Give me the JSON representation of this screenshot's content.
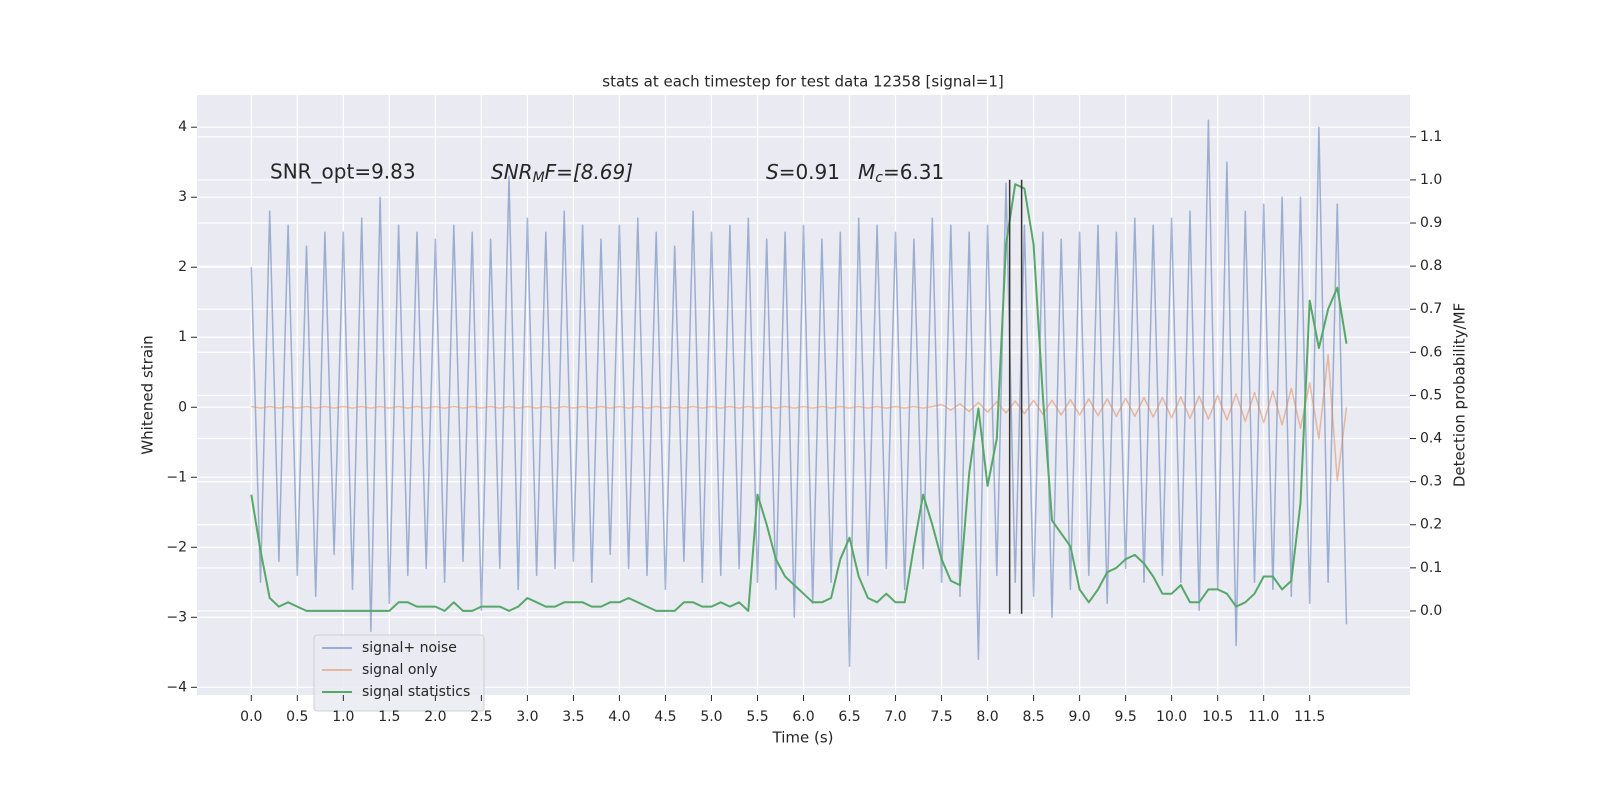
{
  "chart_data": {
    "type": "line",
    "title": "stats at each timestep for test data 12358 [signal=1]",
    "xlabel": "Time (s)",
    "ylabel": "Whitened strain",
    "y2label": "Detection probability/MF",
    "annotations": [
      "SNR_opt=9.83",
      [
        "SNR",
        "M",
        "F=[8.69]"
      ],
      [
        "S",
        "=0.91"
      ],
      [
        "M",
        "c",
        "=6.31"
      ]
    ],
    "x": [
      0.0,
      0.1,
      0.2,
      0.3,
      0.4,
      0.5,
      0.6,
      0.7,
      0.8,
      0.9,
      1.0,
      1.1,
      1.2,
      1.3,
      1.4,
      1.5,
      1.6,
      1.7,
      1.8,
      1.9,
      2.0,
      2.1,
      2.2,
      2.3,
      2.4,
      2.5,
      2.6,
      2.7,
      2.8,
      2.9,
      3.0,
      3.1,
      3.2,
      3.3,
      3.4,
      3.5,
      3.6,
      3.7,
      3.8,
      3.9,
      4.0,
      4.1,
      4.2,
      4.3,
      4.4,
      4.5,
      4.6,
      4.7,
      4.8,
      4.9,
      5.0,
      5.1,
      5.2,
      5.3,
      5.4,
      5.5,
      5.6,
      5.7,
      5.8,
      5.9,
      6.0,
      6.1,
      6.2,
      6.3,
      6.4,
      6.5,
      6.6,
      6.7,
      6.8,
      6.9,
      7.0,
      7.1,
      7.2,
      7.3,
      7.4,
      7.5,
      7.6,
      7.7,
      7.8,
      7.9,
      8.0,
      8.1,
      8.2,
      8.3,
      8.4,
      8.5,
      8.6,
      8.7,
      8.8,
      8.9,
      9.0,
      9.1,
      9.2,
      9.3,
      9.4,
      9.5,
      9.6,
      9.7,
      9.8,
      9.9,
      10.0,
      10.1,
      10.2,
      10.3,
      10.4,
      10.5,
      10.6,
      10.7,
      10.8,
      10.9,
      11.0,
      11.1,
      11.2,
      11.3,
      11.4,
      11.5,
      11.6,
      11.7,
      11.8,
      11.9
    ],
    "series": [
      {
        "name": "signal+ noise",
        "color": "#4c72b0",
        "alpha": 0.5,
        "axis": "y",
        "values": [
          2.0,
          -2.5,
          2.8,
          -2.2,
          2.6,
          -2.4,
          2.3,
          -2.7,
          2.5,
          -2.1,
          2.5,
          -2.6,
          2.7,
          -3.2,
          3.0,
          -2.8,
          2.6,
          -2.4,
          2.5,
          -2.3,
          2.4,
          -2.5,
          2.6,
          -2.2,
          2.5,
          -2.9,
          2.4,
          -2.3,
          3.3,
          -2.6,
          2.7,
          -2.4,
          2.5,
          -2.3,
          2.8,
          -2.2,
          2.6,
          -2.5,
          2.4,
          -2.1,
          2.6,
          -2.3,
          2.7,
          -2.4,
          2.5,
          -2.6,
          2.3,
          -2.2,
          2.8,
          -2.5,
          2.5,
          -2.4,
          2.6,
          -2.3,
          2.7,
          -2.5,
          2.4,
          -2.6,
          2.5,
          -3.0,
          2.6,
          -2.8,
          2.4,
          -2.5,
          2.5,
          -3.7,
          2.7,
          -2.4,
          2.6,
          -2.3,
          2.5,
          -2.6,
          2.4,
          -2.3,
          2.7,
          -2.5,
          2.6,
          -2.7,
          2.5,
          -3.6,
          2.6,
          -2.4,
          3.2,
          -2.5,
          2.6,
          -2.7,
          2.5,
          -3.0,
          2.4,
          -2.6,
          2.5,
          -2.4,
          2.6,
          -2.8,
          2.5,
          -2.3,
          2.7,
          -2.5,
          2.6,
          -2.4,
          2.7,
          -2.5,
          2.8,
          -2.9,
          4.1,
          -2.6,
          3.5,
          -3.4,
          2.8,
          -2.5,
          2.9,
          -2.6,
          3.0,
          -2.7,
          3.0,
          -2.8,
          4.0,
          -2.5,
          2.9,
          -3.1
        ]
      },
      {
        "name": "signal only",
        "color": "#dd8452",
        "alpha": 0.5,
        "axis": "y",
        "values": [
          0.01,
          -0.01,
          0.01,
          -0.01,
          0.01,
          -0.01,
          0.01,
          -0.01,
          0.01,
          -0.01,
          0.01,
          -0.01,
          0.01,
          -0.01,
          0.01,
          -0.01,
          0.01,
          -0.01,
          0.01,
          -0.01,
          0.01,
          -0.01,
          0.01,
          -0.01,
          0.01,
          -0.01,
          0.01,
          -0.01,
          0.01,
          -0.01,
          0.01,
          -0.01,
          0.01,
          -0.01,
          0.01,
          -0.01,
          0.01,
          -0.01,
          0.01,
          -0.01,
          0.01,
          -0.01,
          0.01,
          -0.01,
          0.01,
          -0.01,
          0.01,
          -0.01,
          0.01,
          -0.01,
          0.01,
          -0.01,
          0.01,
          -0.01,
          0.01,
          -0.01,
          0.01,
          -0.01,
          0.01,
          -0.01,
          0.01,
          -0.01,
          0.01,
          -0.01,
          0.01,
          -0.01,
          0.01,
          -0.01,
          0.01,
          -0.01,
          0.01,
          -0.01,
          0.01,
          -0.01,
          0.01,
          0.04,
          -0.04,
          0.05,
          -0.06,
          0.07,
          -0.07,
          0.08,
          -0.08,
          0.09,
          -0.09,
          0.1,
          -0.1,
          0.1,
          -0.11,
          0.11,
          -0.11,
          0.12,
          -0.12,
          0.12,
          -0.13,
          0.13,
          -0.13,
          0.14,
          -0.14,
          0.14,
          -0.15,
          0.15,
          -0.16,
          0.16,
          -0.17,
          0.17,
          -0.18,
          0.19,
          -0.2,
          0.21,
          -0.22,
          0.23,
          -0.25,
          0.27,
          -0.3,
          0.35,
          -0.45,
          0.75,
          -1.05,
          0.0
        ]
      },
      {
        "name": "signal statistics",
        "color": "#55a868",
        "alpha": 1,
        "axis": "y2",
        "values": [
          0.27,
          0.14,
          0.03,
          0.01,
          0.02,
          0.01,
          0.0,
          0.0,
          0.0,
          0.0,
          0.0,
          0.0,
          0.0,
          0.0,
          0.0,
          0.0,
          0.02,
          0.02,
          0.01,
          0.01,
          0.01,
          0.0,
          0.02,
          0.0,
          0.0,
          0.01,
          0.01,
          0.01,
          0.0,
          0.01,
          0.03,
          0.02,
          0.01,
          0.01,
          0.02,
          0.02,
          0.02,
          0.01,
          0.01,
          0.02,
          0.02,
          0.03,
          0.02,
          0.01,
          0.0,
          0.0,
          0.0,
          0.02,
          0.02,
          0.01,
          0.01,
          0.02,
          0.01,
          0.02,
          0.0,
          0.27,
          0.2,
          0.12,
          0.08,
          0.06,
          0.04,
          0.02,
          0.02,
          0.03,
          0.12,
          0.17,
          0.08,
          0.03,
          0.02,
          0.04,
          0.02,
          0.02,
          0.15,
          0.27,
          0.2,
          0.12,
          0.07,
          0.06,
          0.32,
          0.47,
          0.29,
          0.4,
          0.85,
          0.99,
          0.98,
          0.85,
          0.5,
          0.21,
          0.18,
          0.15,
          0.05,
          0.02,
          0.05,
          0.09,
          0.1,
          0.12,
          0.13,
          0.11,
          0.08,
          0.04,
          0.04,
          0.06,
          0.02,
          0.02,
          0.05,
          0.05,
          0.04,
          0.01,
          0.02,
          0.04,
          0.08,
          0.08,
          0.05,
          0.07,
          0.25,
          0.72,
          0.61,
          0.7,
          0.75,
          0.62
        ]
      }
    ],
    "vlines": [
      {
        "x": 8.24,
        "ymin": -2.95,
        "ymax": 3.25,
        "color": "#333333"
      },
      {
        "x": 8.37,
        "ymin": -2.95,
        "ymax": 3.25,
        "color": "#333333"
      }
    ],
    "xlim": [
      -0.59,
      12.59
    ],
    "ylim": [
      -4.11,
      4.46
    ],
    "y2lim": [
      -0.195,
      1.197
    ],
    "xticks": [
      {
        "value": 0,
        "label": "0.0"
      },
      0.5,
      {
        "value": 1,
        "label": "1.0"
      },
      1.5,
      {
        "value": 2,
        "label": "2.0"
      },
      2.5,
      {
        "value": 3,
        "label": "3.0"
      },
      3.5,
      {
        "value": 4,
        "label": "4.0"
      },
      4.5,
      {
        "value": 5,
        "label": "5.0"
      },
      5.5,
      {
        "value": 6,
        "label": "6.0"
      },
      6.5,
      {
        "value": 7,
        "label": "7.0"
      },
      7.5,
      {
        "value": 8,
        "label": "8.0"
      },
      8.5,
      {
        "value": 9,
        "label": "9.0"
      },
      9.5,
      {
        "value": 10,
        "label": "10.0"
      },
      10.5,
      {
        "value": 11,
        "label": "11.0"
      },
      11.5
    ],
    "yticks": [
      {
        "value": -4,
        "label": "−4"
      },
      {
        "value": -3,
        "label": "−3"
      },
      {
        "value": -2,
        "label": "−2"
      },
      {
        "value": -1,
        "label": "−1"
      },
      0,
      1,
      2,
      3,
      4
    ],
    "y2ticks": [
      {
        "value": 0,
        "label": "0.0"
      },
      0.1,
      0.2,
      0.3,
      0.4,
      0.5,
      0.6,
      0.7,
      0.8,
      0.9,
      {
        "value": 1,
        "label": "1.0"
      },
      1.1
    ],
    "grid": true,
    "legend": "lower left"
  }
}
